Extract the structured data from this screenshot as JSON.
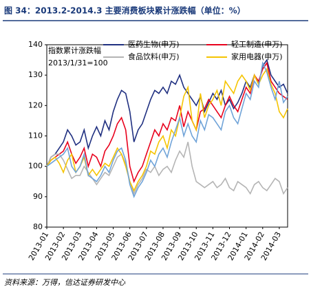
{
  "chart_data": {
    "type": "line",
    "title": "图 34：2013.2-2014.3 主要消费板块累计涨跌幅（单位：%）",
    "annotations": [
      "指数累计涨跌幅",
      "2013/1/31=100"
    ],
    "source": "资料来源：万得，信达证券研发中心",
    "categories": [
      "2013-01",
      null,
      null,
      null,
      "2013-02",
      null,
      null,
      null,
      "2013-03",
      null,
      null,
      null,
      "2013-04",
      null,
      null,
      null,
      "2013-05",
      null,
      null,
      null,
      "2013-06",
      null,
      null,
      null,
      "2013-07",
      null,
      null,
      null,
      "2013-08",
      null,
      null,
      null,
      "2013-09",
      null,
      null,
      null,
      "2013-10",
      null,
      null,
      null,
      "2013-11",
      null,
      null,
      null,
      "2013-12",
      null,
      null,
      null,
      "2014-01",
      null,
      null,
      null,
      "2014-02",
      null,
      null,
      null,
      "2014-03",
      null,
      null
    ],
    "ylim": [
      80,
      140
    ],
    "yticks": [
      80,
      90,
      100,
      110,
      120,
      130,
      140
    ],
    "grid": false,
    "series": [
      {
        "name": "医药生物(申万)",
        "color": "#1f2f80",
        "values": [
          100,
          103,
          104,
          106,
          108,
          112,
          110,
          107,
          108,
          112,
          106,
          110,
          113,
          110,
          115,
          112,
          118,
          122,
          125,
          124,
          118,
          108,
          112,
          114,
          118,
          122,
          125,
          124,
          126,
          124,
          128,
          127,
          130,
          126,
          124,
          122,
          120,
          123,
          118,
          121,
          124,
          122,
          125,
          120,
          122,
          119,
          121,
          124,
          128,
          126,
          130,
          127,
          133,
          135,
          130,
          128,
          126,
          127,
          124
        ]
      },
      {
        "name": "轻工制造(申万)",
        "color": "#e8001c",
        "values": [
          100,
          102,
          103,
          104,
          105,
          108,
          104,
          101,
          103,
          106,
          100,
          104,
          103,
          100,
          105,
          107,
          110,
          114,
          116,
          112,
          100,
          95,
          98,
          100,
          104,
          108,
          112,
          110,
          114,
          112,
          116,
          115,
          120,
          113,
          118,
          115,
          112,
          118,
          119,
          122,
          120,
          118,
          116,
          120,
          123,
          120,
          118,
          122,
          126,
          124,
          130,
          128,
          132,
          134,
          128,
          126,
          124,
          123,
          122
        ]
      },
      {
        "name": "食品饮料(申万)",
        "color": "#b4b4b4",
        "values": [
          100,
          103,
          104,
          104,
          102,
          99,
          96,
          97,
          97,
          100,
          98,
          96,
          94,
          96,
          98,
          97,
          100,
          103,
          104,
          101,
          95,
          91,
          94,
          96,
          99,
          98,
          100,
          97,
          99,
          100,
          98,
          102,
          105,
          103,
          108,
          100,
          95,
          94,
          93,
          94,
          95,
          93,
          94,
          96,
          93,
          92,
          95,
          94,
          93,
          91,
          94,
          95,
          93,
          92,
          94,
          96,
          95,
          91,
          93
        ]
      },
      {
        "name": "家用电器(申万)",
        "color": "#f5c400",
        "values": [
          100,
          102,
          103,
          101,
          98,
          102,
          104,
          98,
          100,
          103,
          97,
          99,
          97,
          99,
          101,
          100,
          103,
          106,
          104,
          100,
          95,
          92,
          95,
          97,
          100,
          105,
          104,
          108,
          110,
          106,
          112,
          110,
          116,
          123,
          126,
          115,
          112,
          124,
          116,
          120,
          122,
          125,
          120,
          128,
          126,
          124,
          128,
          130,
          128,
          125,
          130,
          127,
          130,
          132,
          127,
          124,
          118,
          116,
          119
        ]
      },
      {
        "color": "#6fa3d8",
        "values": [
          100,
          101,
          102,
          103,
          104,
          106,
          100,
          98,
          100,
          104,
          97,
          96,
          95,
          97,
          100,
          98,
          102,
          105,
          106,
          102,
          94,
          90,
          93,
          95,
          98,
          102,
          100,
          104,
          106,
          103,
          108,
          112,
          116,
          110,
          114,
          110,
          108,
          115,
          112,
          117,
          116,
          114,
          112,
          118,
          120,
          116,
          114,
          119,
          124,
          122,
          128,
          126,
          134,
          131,
          126,
          122,
          128,
          121,
          123
        ]
      }
    ]
  }
}
